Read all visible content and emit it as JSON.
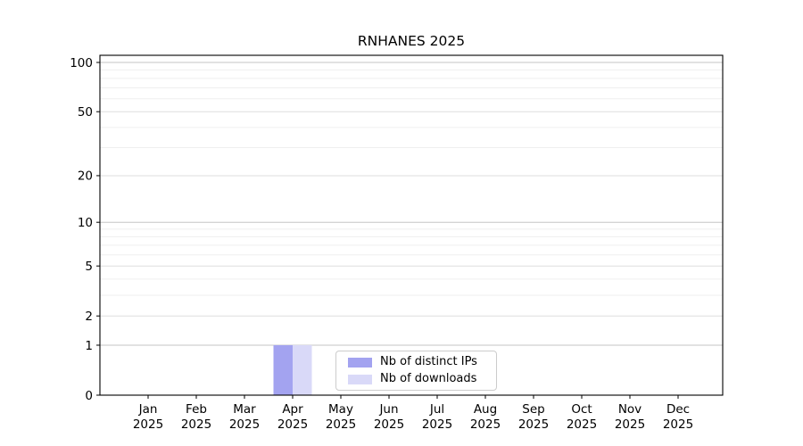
{
  "chart_data": {
    "type": "bar",
    "title": "RNHANES 2025",
    "x_categories": [
      "Jan 2025",
      "Feb 2025",
      "Mar 2025",
      "Apr 2025",
      "May 2025",
      "Jun 2025",
      "Jul 2025",
      "Aug 2025",
      "Sep 2025",
      "Oct 2025",
      "Nov 2025",
      "Dec 2025"
    ],
    "series": [
      {
        "name": "Nb of distinct IPs",
        "color": "#a3a3f0",
        "values": [
          0,
          0,
          0,
          1,
          0,
          0,
          0,
          0,
          0,
          0,
          0,
          0
        ]
      },
      {
        "name": "Nb of downloads",
        "color": "#d9d9f8",
        "values": [
          0,
          0,
          0,
          1,
          0,
          0,
          0,
          0,
          0,
          0,
          0,
          0
        ]
      }
    ],
    "xlabel": "",
    "ylabel": "",
    "y_scale": "log1p",
    "ylim": [
      0,
      110
    ],
    "y_ticks_labeled": [
      0,
      1,
      2,
      5,
      10,
      20,
      50,
      100
    ],
    "y_gridlines_decade": [
      1,
      10,
      100
    ],
    "y_gridlines_minor": [
      3,
      4,
      6,
      7,
      8,
      9,
      30,
      40,
      60,
      70,
      80,
      90
    ],
    "grid": true,
    "legend_position": "lower center inside"
  },
  "colors": {
    "grid_decade": "#c6c6c6",
    "grid_labeled": "#dedede",
    "grid_minor": "#efefef",
    "axis": "#000000",
    "legend_border": "#cccccc",
    "background": "#ffffff"
  }
}
